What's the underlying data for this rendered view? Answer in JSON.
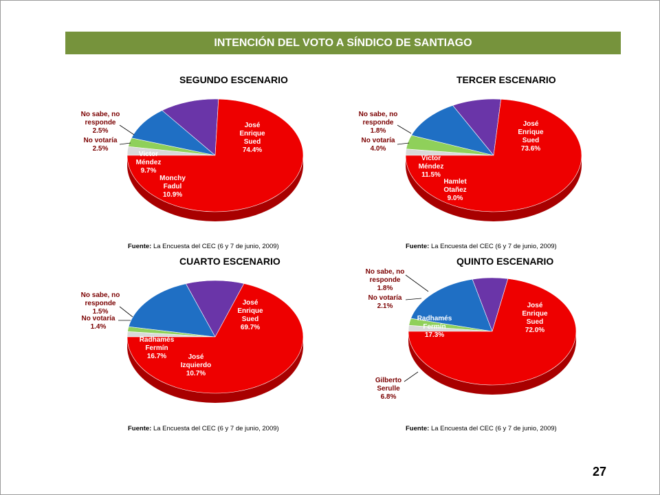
{
  "header": {
    "title": "INTENCIÓN DEL VOTO A SÍNDICO DE SANTIAGO"
  },
  "page_number": "27",
  "colors": {
    "header_bg": "#76933c",
    "red": "#ee0000",
    "blue": "#1f6fc4",
    "purple": "#6a35a8",
    "green": "#8fd05a",
    "gray": "#d9d9d9"
  },
  "chart_data": [
    {
      "type": "pie",
      "title": "SEGUNDO  ESCENARIO",
      "source_label": "Fuente:",
      "source_text": "La Encuesta del CEC (6 y 7 de junio, 2009)",
      "slices": [
        {
          "label": [
            "José",
            "Enrique",
            "Sued"
          ],
          "value": 74.4,
          "value_text": "74.4%",
          "color": "red"
        },
        {
          "label": [
            "Monchy",
            "Fadul"
          ],
          "value": 10.9,
          "value_text": "10.9%",
          "color": "purple"
        },
        {
          "label": [
            "Victor",
            "Méndez"
          ],
          "value": 9.7,
          "value_text": "9.7%",
          "color": "blue"
        },
        {
          "label": [
            "No votaría"
          ],
          "value": 2.5,
          "value_text": "2.5%",
          "color": "green"
        },
        {
          "label": [
            "No sabe, no",
            "responde"
          ],
          "value": 2.5,
          "value_text": "2.5%",
          "color": "gray"
        }
      ]
    },
    {
      "type": "pie",
      "title": "TERCER  ESCENARIO",
      "source_label": "Fuente:",
      "source_text": "La Encuesta del CEC (6 y 7 de junio, 2009)",
      "slices": [
        {
          "label": [
            "José",
            "Enrique",
            "Sued"
          ],
          "value": 73.6,
          "value_text": "73.6%",
          "color": "red"
        },
        {
          "label": [
            "Hamlet",
            "Otañez"
          ],
          "value": 9.0,
          "value_text": "9.0%",
          "color": "purple"
        },
        {
          "label": [
            "Víctor",
            "Méndez"
          ],
          "value": 11.5,
          "value_text": "11.5%",
          "color": "blue"
        },
        {
          "label": [
            "No votaría"
          ],
          "value": 4.0,
          "value_text": "4.0%",
          "color": "green"
        },
        {
          "label": [
            "No sabe, no",
            "responde"
          ],
          "value": 1.8,
          "value_text": "1.8%",
          "color": "gray"
        }
      ]
    },
    {
      "type": "pie",
      "title": "CUARTO  ESCENARIO",
      "source_label": "Fuente:",
      "source_text": "La Encuesta del CEC (6 y 7 de junio, 2009)",
      "slices": [
        {
          "label": [
            "José",
            "Enrique",
            "Sued"
          ],
          "value": 69.7,
          "value_text": "69.7%",
          "color": "red"
        },
        {
          "label": [
            "José",
            "Izquierdo"
          ],
          "value": 10.7,
          "value_text": "10.7%",
          "color": "purple"
        },
        {
          "label": [
            "Radhamés",
            "Fermín"
          ],
          "value": 16.7,
          "value_text": "16.7%",
          "color": "blue"
        },
        {
          "label": [
            "No votaría"
          ],
          "value": 1.4,
          "value_text": "1.4%",
          "color": "green"
        },
        {
          "label": [
            "No sabe, no",
            "responde"
          ],
          "value": 1.5,
          "value_text": "1.5%",
          "color": "gray"
        }
      ]
    },
    {
      "type": "pie",
      "title": "QUINTO  ESCENARIO",
      "source_label": "Fuente:",
      "source_text": "La Encuesta del CEC (6 y 7 de junio, 2009)",
      "slices": [
        {
          "label": [
            "José",
            "Enrique",
            "Sued"
          ],
          "value": 72.0,
          "value_text": "72.0%",
          "color": "red"
        },
        {
          "label": [
            "Gilberto",
            "Serulle"
          ],
          "value": 6.8,
          "value_text": "6.8%",
          "color": "purple"
        },
        {
          "label": [
            "Radhamés",
            "Fermín"
          ],
          "value": 17.3,
          "value_text": "17.3%",
          "color": "blue"
        },
        {
          "label": [
            "No votaría"
          ],
          "value": 2.1,
          "value_text": "2.1%",
          "color": "green"
        },
        {
          "label": [
            "No sabe, no",
            "responde"
          ],
          "value": 1.8,
          "value_text": "1.8%",
          "color": "gray"
        }
      ]
    }
  ]
}
